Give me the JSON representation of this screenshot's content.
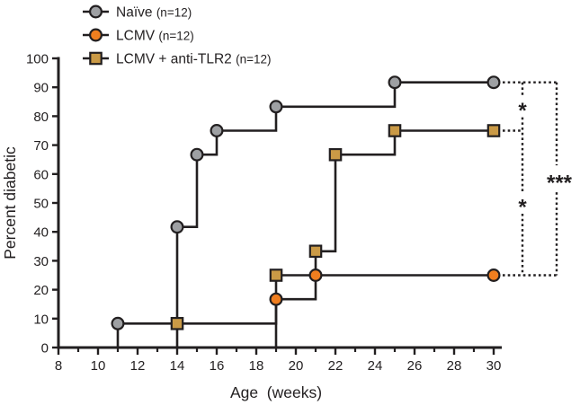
{
  "figure": {
    "background": "#ffffff",
    "ink_color": "#221f20"
  },
  "chart_data": {
    "type": "line",
    "subtype": "step-incidence-curve",
    "title": "",
    "xlabel": "Age  (weeks)",
    "ylabel": "Percent diabetic",
    "xlim": [
      8,
      30
    ],
    "ylim": [
      0,
      100
    ],
    "x_major_ticks": [
      8,
      10,
      12,
      14,
      16,
      18,
      20,
      22,
      24,
      26,
      28,
      30
    ],
    "x_minor_ticks": [
      9,
      11,
      13,
      15,
      17,
      19,
      21,
      23,
      25,
      27,
      29
    ],
    "y_ticks": [
      0,
      10,
      20,
      30,
      40,
      50,
      60,
      70,
      80,
      90,
      100
    ],
    "grid": false,
    "legend_position": "top-left",
    "series": [
      {
        "name": "Naïve",
        "n_label": "(n=12)",
        "marker": "circle",
        "marker_fill": "#9ea0a3",
        "line_color": "#221f20",
        "points": [
          [
            11,
            8.3
          ],
          [
            14,
            41.7
          ],
          [
            15,
            66.7
          ],
          [
            16,
            75
          ],
          [
            19,
            83.3
          ],
          [
            25,
            91.7
          ],
          [
            30,
            91.7
          ]
        ]
      },
      {
        "name": "LCMV",
        "n_label": "(n=12)",
        "marker": "circle",
        "marker_fill": "#f07e1f",
        "line_color": "#221f20",
        "points": [
          [
            19,
            16.7
          ],
          [
            21,
            25
          ],
          [
            30,
            25
          ]
        ]
      },
      {
        "name": "LCMV + anti-TLR2",
        "n_label": "(n=12)",
        "marker": "square",
        "marker_fill": "#ca9a46",
        "line_color": "#221f20",
        "points": [
          [
            14,
            8.3
          ],
          [
            19,
            25
          ],
          [
            21,
            33.3
          ],
          [
            22,
            66.7
          ],
          [
            25,
            75
          ],
          [
            30,
            75
          ]
        ]
      }
    ],
    "significance": [
      {
        "groups": [
          "Naïve",
          "LCMV + anti-TLR2"
        ],
        "stars": "*"
      },
      {
        "groups": [
          "LCMV + anti-TLR2",
          "LCMV"
        ],
        "stars": "*"
      },
      {
        "groups": [
          "Naïve",
          "LCMV"
        ],
        "stars": "***"
      }
    ]
  }
}
